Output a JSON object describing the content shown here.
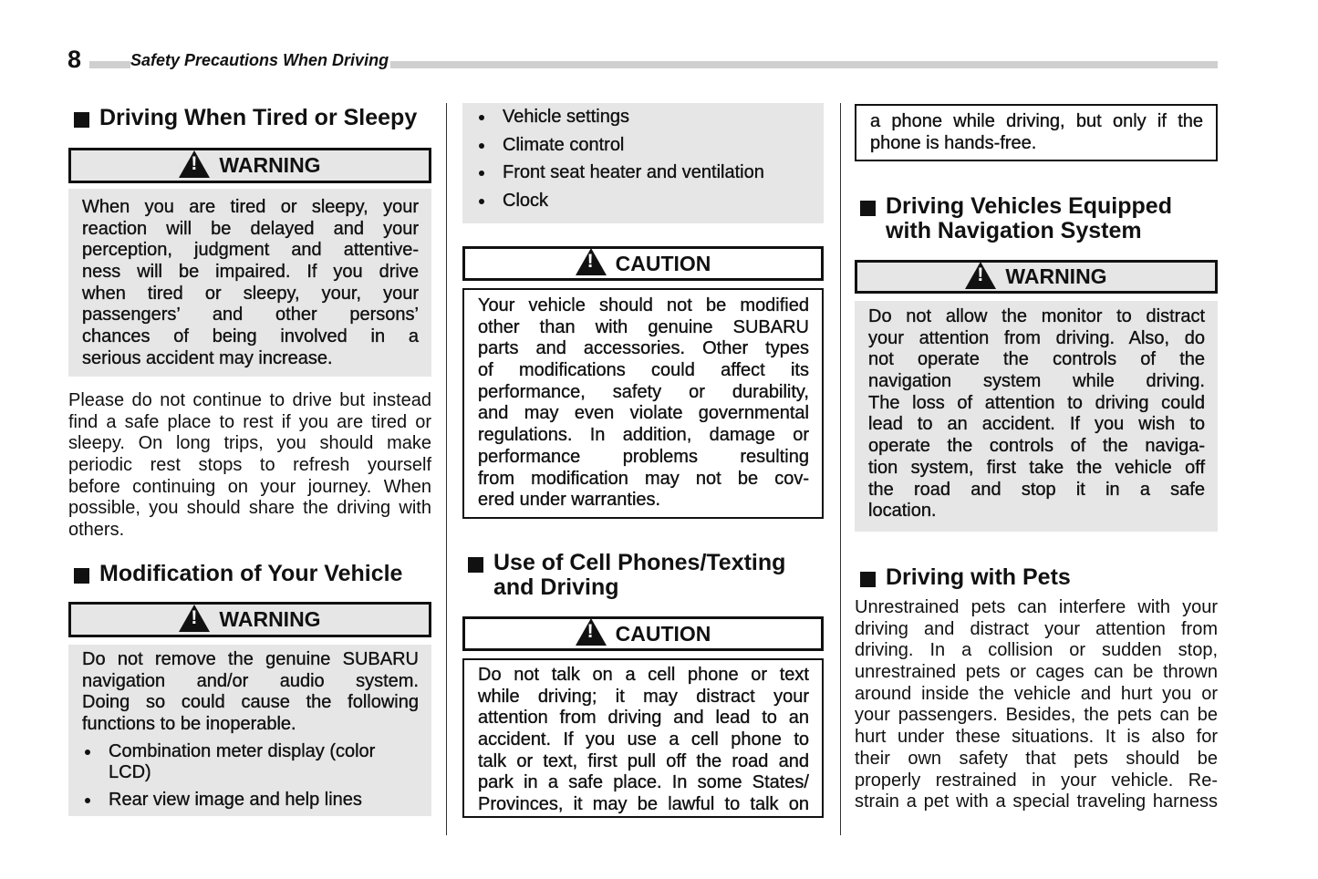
{
  "header": {
    "page_number": "8",
    "title": "Safety Precautions When Driving"
  },
  "columns": [
    {
      "blocks": [
        {
          "type": "heading",
          "lines": [
            "Driving When Tired or Sleepy"
          ]
        },
        {
          "type": "label",
          "variant": "warning",
          "label": "WARNING",
          "icon": "warning-triangle-icon"
        },
        {
          "type": "box",
          "variant": "gray",
          "paragraphs": [
            {
              "lines": [
                "When you are tired or sleepy, your",
                "reaction will be delayed and your",
                "perception, judgment and attentive-",
                "ness will be impaired. If you drive",
                "when tired or sleepy, your, your",
                "passengers’ and other persons’",
                "chances of being involved in a",
                "serious accident may increase."
              ],
              "ends": true
            }
          ]
        },
        {
          "type": "para",
          "paragraphs": [
            {
              "lines": [
                "Please do not continue to drive but instead",
                "find a safe place to rest if you are tired or",
                "sleepy. On long trips, you should make",
                "periodic rest stops to refresh yourself",
                "before continuing on your journey. When",
                "possible, you should share the driving with",
                "others."
              ],
              "ends": true
            }
          ]
        },
        {
          "type": "heading",
          "lines": [
            "Modification of Your Vehicle"
          ]
        },
        {
          "type": "label",
          "variant": "warning",
          "label": "WARNING",
          "icon": "warning-triangle-icon"
        },
        {
          "type": "box",
          "variant": "gray",
          "paragraphs": [
            {
              "lines": [
                "Do not remove the genuine SUBARU",
                "navigation and/or audio system.",
                "Doing so could cause the following",
                "functions to be inoperable."
              ],
              "ends": true
            }
          ],
          "bullets": [
            {
              "lines": [
                "Combination meter display (color",
                "LCD)"
              ]
            },
            {
              "lines": [
                "Rear view image and help lines"
              ]
            }
          ]
        }
      ]
    },
    {
      "blocks": [
        {
          "type": "box",
          "variant": "gray",
          "bullets": [
            {
              "lines": [
                "Vehicle settings"
              ]
            },
            {
              "lines": [
                "Climate control"
              ]
            },
            {
              "lines": [
                "Front seat heater and ventilation"
              ]
            },
            {
              "lines": [
                "Clock"
              ]
            }
          ]
        },
        {
          "type": "label",
          "variant": "caution",
          "label": "CAUTION",
          "icon": "warning-triangle-icon"
        },
        {
          "type": "box",
          "variant": "outline",
          "paragraphs": [
            {
              "lines": [
                "Your vehicle should not be modified",
                "other than with genuine SUBARU",
                "parts and accessories. Other types",
                "of modifications could affect its",
                "performance, safety or durability,",
                "and may even violate governmental",
                "regulations. In addition, damage or",
                "performance problems resulting",
                "from modification may not be cov-",
                "ered under warranties."
              ],
              "ends": true
            }
          ]
        },
        {
          "type": "heading",
          "lines": [
            "Use of Cell Phones/Texting",
            "and Driving"
          ]
        },
        {
          "type": "label",
          "variant": "caution",
          "label": "CAUTION",
          "icon": "warning-triangle-icon"
        },
        {
          "type": "box",
          "variant": "outline",
          "paragraphs": [
            {
              "lines": [
                "Do not talk on a cell phone or text",
                "while driving; it may distract your",
                "attention from driving and lead to an",
                "accident. If you use a cell phone to",
                "talk or text, first pull off the road and",
                "park in a safe place. In some States/",
                "Provinces, it may be lawful to talk on"
              ],
              "ends": false
            }
          ]
        }
      ]
    },
    {
      "blocks": [
        {
          "type": "box",
          "variant": "outline",
          "paragraphs": [
            {
              "lines": [
                "a phone while driving, but only if the",
                "phone is hands-free."
              ],
              "ends": true
            }
          ]
        },
        {
          "type": "heading",
          "lines": [
            "Driving Vehicles Equipped",
            "with Navigation System"
          ]
        },
        {
          "type": "label",
          "variant": "warning",
          "label": "WARNING",
          "icon": "warning-triangle-icon"
        },
        {
          "type": "box",
          "variant": "gray",
          "paragraphs": [
            {
              "lines": [
                "Do not allow the monitor to distract",
                "your attention from driving. Also, do",
                "not operate the controls of the",
                "navigation system while driving.",
                "The loss of attention to driving could",
                "lead to an accident. If you wish to",
                "operate the controls of the naviga-",
                "tion system, first take the vehicle off",
                "the road and stop it in a safe",
                "location."
              ],
              "ends": true
            }
          ]
        },
        {
          "type": "heading",
          "lines": [
            "Driving with Pets"
          ]
        },
        {
          "type": "para",
          "paragraphs": [
            {
              "lines": [
                "Unrestrained pets can interfere with your",
                "driving and distract your attention from",
                "driving. In a collision or sudden stop,",
                "unrestrained pets or cages can be thrown",
                "around inside the vehicle and hurt you or",
                "your passengers. Besides, the pets can be",
                "hurt under these situations. It is also for",
                "their own safety that pets should be",
                "properly restrained in your vehicle. Re-",
                "strain a pet with a special traveling harness"
              ],
              "ends": false
            }
          ]
        }
      ]
    }
  ]
}
